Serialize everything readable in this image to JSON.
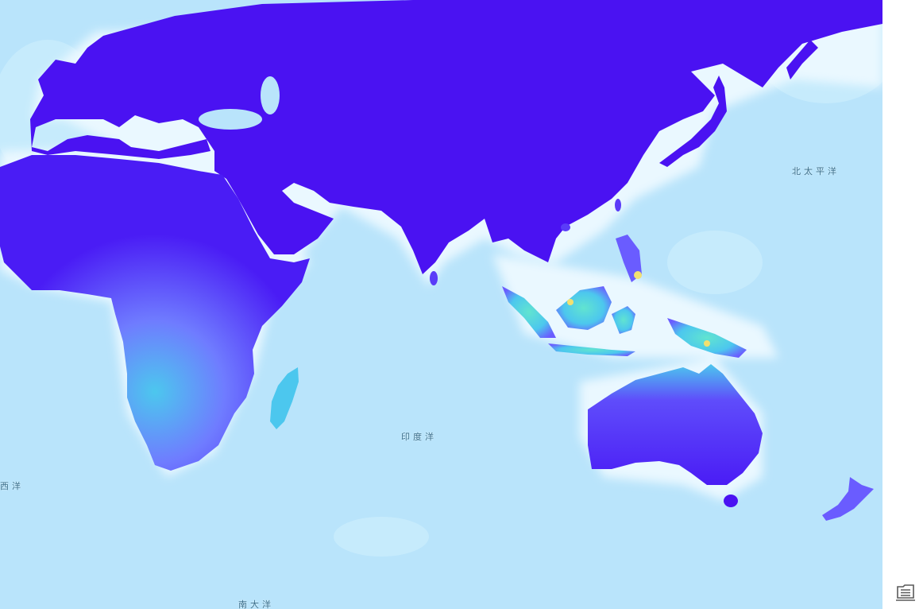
{
  "map": {
    "ocean_labels": {
      "north_pacific": "北太平洋",
      "indian_ocean": "印度洋",
      "atlantic_partial": "西洋",
      "southern_ocean": "南大洋"
    },
    "colors": {
      "ocean_deep": "#b9e4fb",
      "ocean_shallow": "#d8f1fd",
      "coast_glow": "#eaf8ff",
      "land_low": "#4a1cf5",
      "land_mid": "#6a5cff",
      "land_moist": "#4cc7ee",
      "land_high": "#f2e070"
    }
  },
  "controls": {
    "layers_button_icon": "layers-list-icon"
  }
}
